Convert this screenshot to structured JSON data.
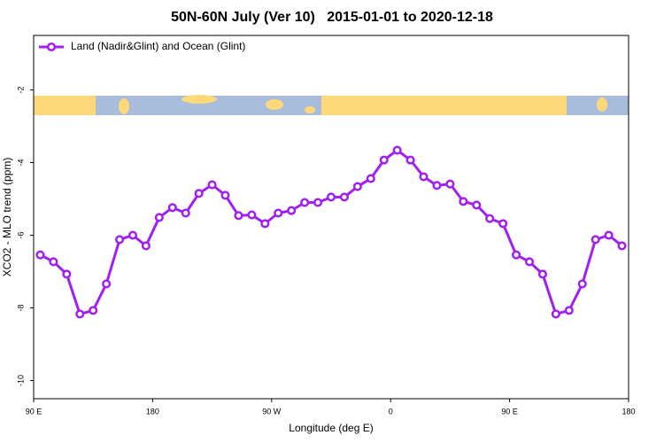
{
  "chart_data": {
    "type": "line",
    "title": "50N-60N July (Ver 10)   2015-01-01 to 2020-12-18",
    "xlabel": "Longitude (deg E)",
    "ylabel": "XCO2 - MLO trend (ppm)",
    "x": [
      95,
      105,
      115,
      125,
      135,
      145,
      155,
      165,
      175,
      185,
      195,
      205,
      215,
      225,
      235,
      245,
      255,
      265,
      275,
      285,
      295,
      305,
      315,
      325,
      335,
      345,
      355,
      365,
      375,
      385,
      395,
      405,
      415,
      425,
      435,
      445,
      455,
      465,
      475,
      485,
      495,
      505,
      515,
      525,
      535
    ],
    "series": [
      {
        "name": "Land (Nadir&Glint) and Ocean (Glint)",
        "color": "#a020f0",
        "values": [
          -6.54,
          -6.73,
          -7.07,
          -8.17,
          -8.07,
          -7.34,
          -6.12,
          -6.0,
          -6.29,
          -5.51,
          -5.24,
          -5.39,
          -4.85,
          -4.61,
          -4.9,
          -5.46,
          -5.44,
          -5.68,
          -5.39,
          -5.32,
          -5.1,
          -5.1,
          -4.95,
          -4.95,
          -4.66,
          -4.44,
          -3.93,
          -3.66,
          -3.93,
          -4.39,
          -4.63,
          -4.59,
          -5.07,
          -5.17,
          -5.54,
          -5.68,
          -6.54,
          -6.73,
          -7.07,
          -8.17,
          -8.07,
          -7.34,
          -6.12,
          -6.0,
          -6.29
        ]
      }
    ],
    "xlim": [
      90,
      540
    ],
    "xticks": [
      {
        "value": 90,
        "label": "90 E"
      },
      {
        "value": 180,
        "label": "180"
      },
      {
        "value": 270,
        "label": "90 W"
      },
      {
        "value": 360,
        "label": "0"
      },
      {
        "value": 450,
        "label": "90 E"
      },
      {
        "value": 540,
        "label": "180"
      }
    ],
    "ylim": [
      -10.5,
      -0.5
    ],
    "yticks": [
      -10,
      -8,
      -6,
      -4,
      -2
    ],
    "legend": "upper left"
  }
}
